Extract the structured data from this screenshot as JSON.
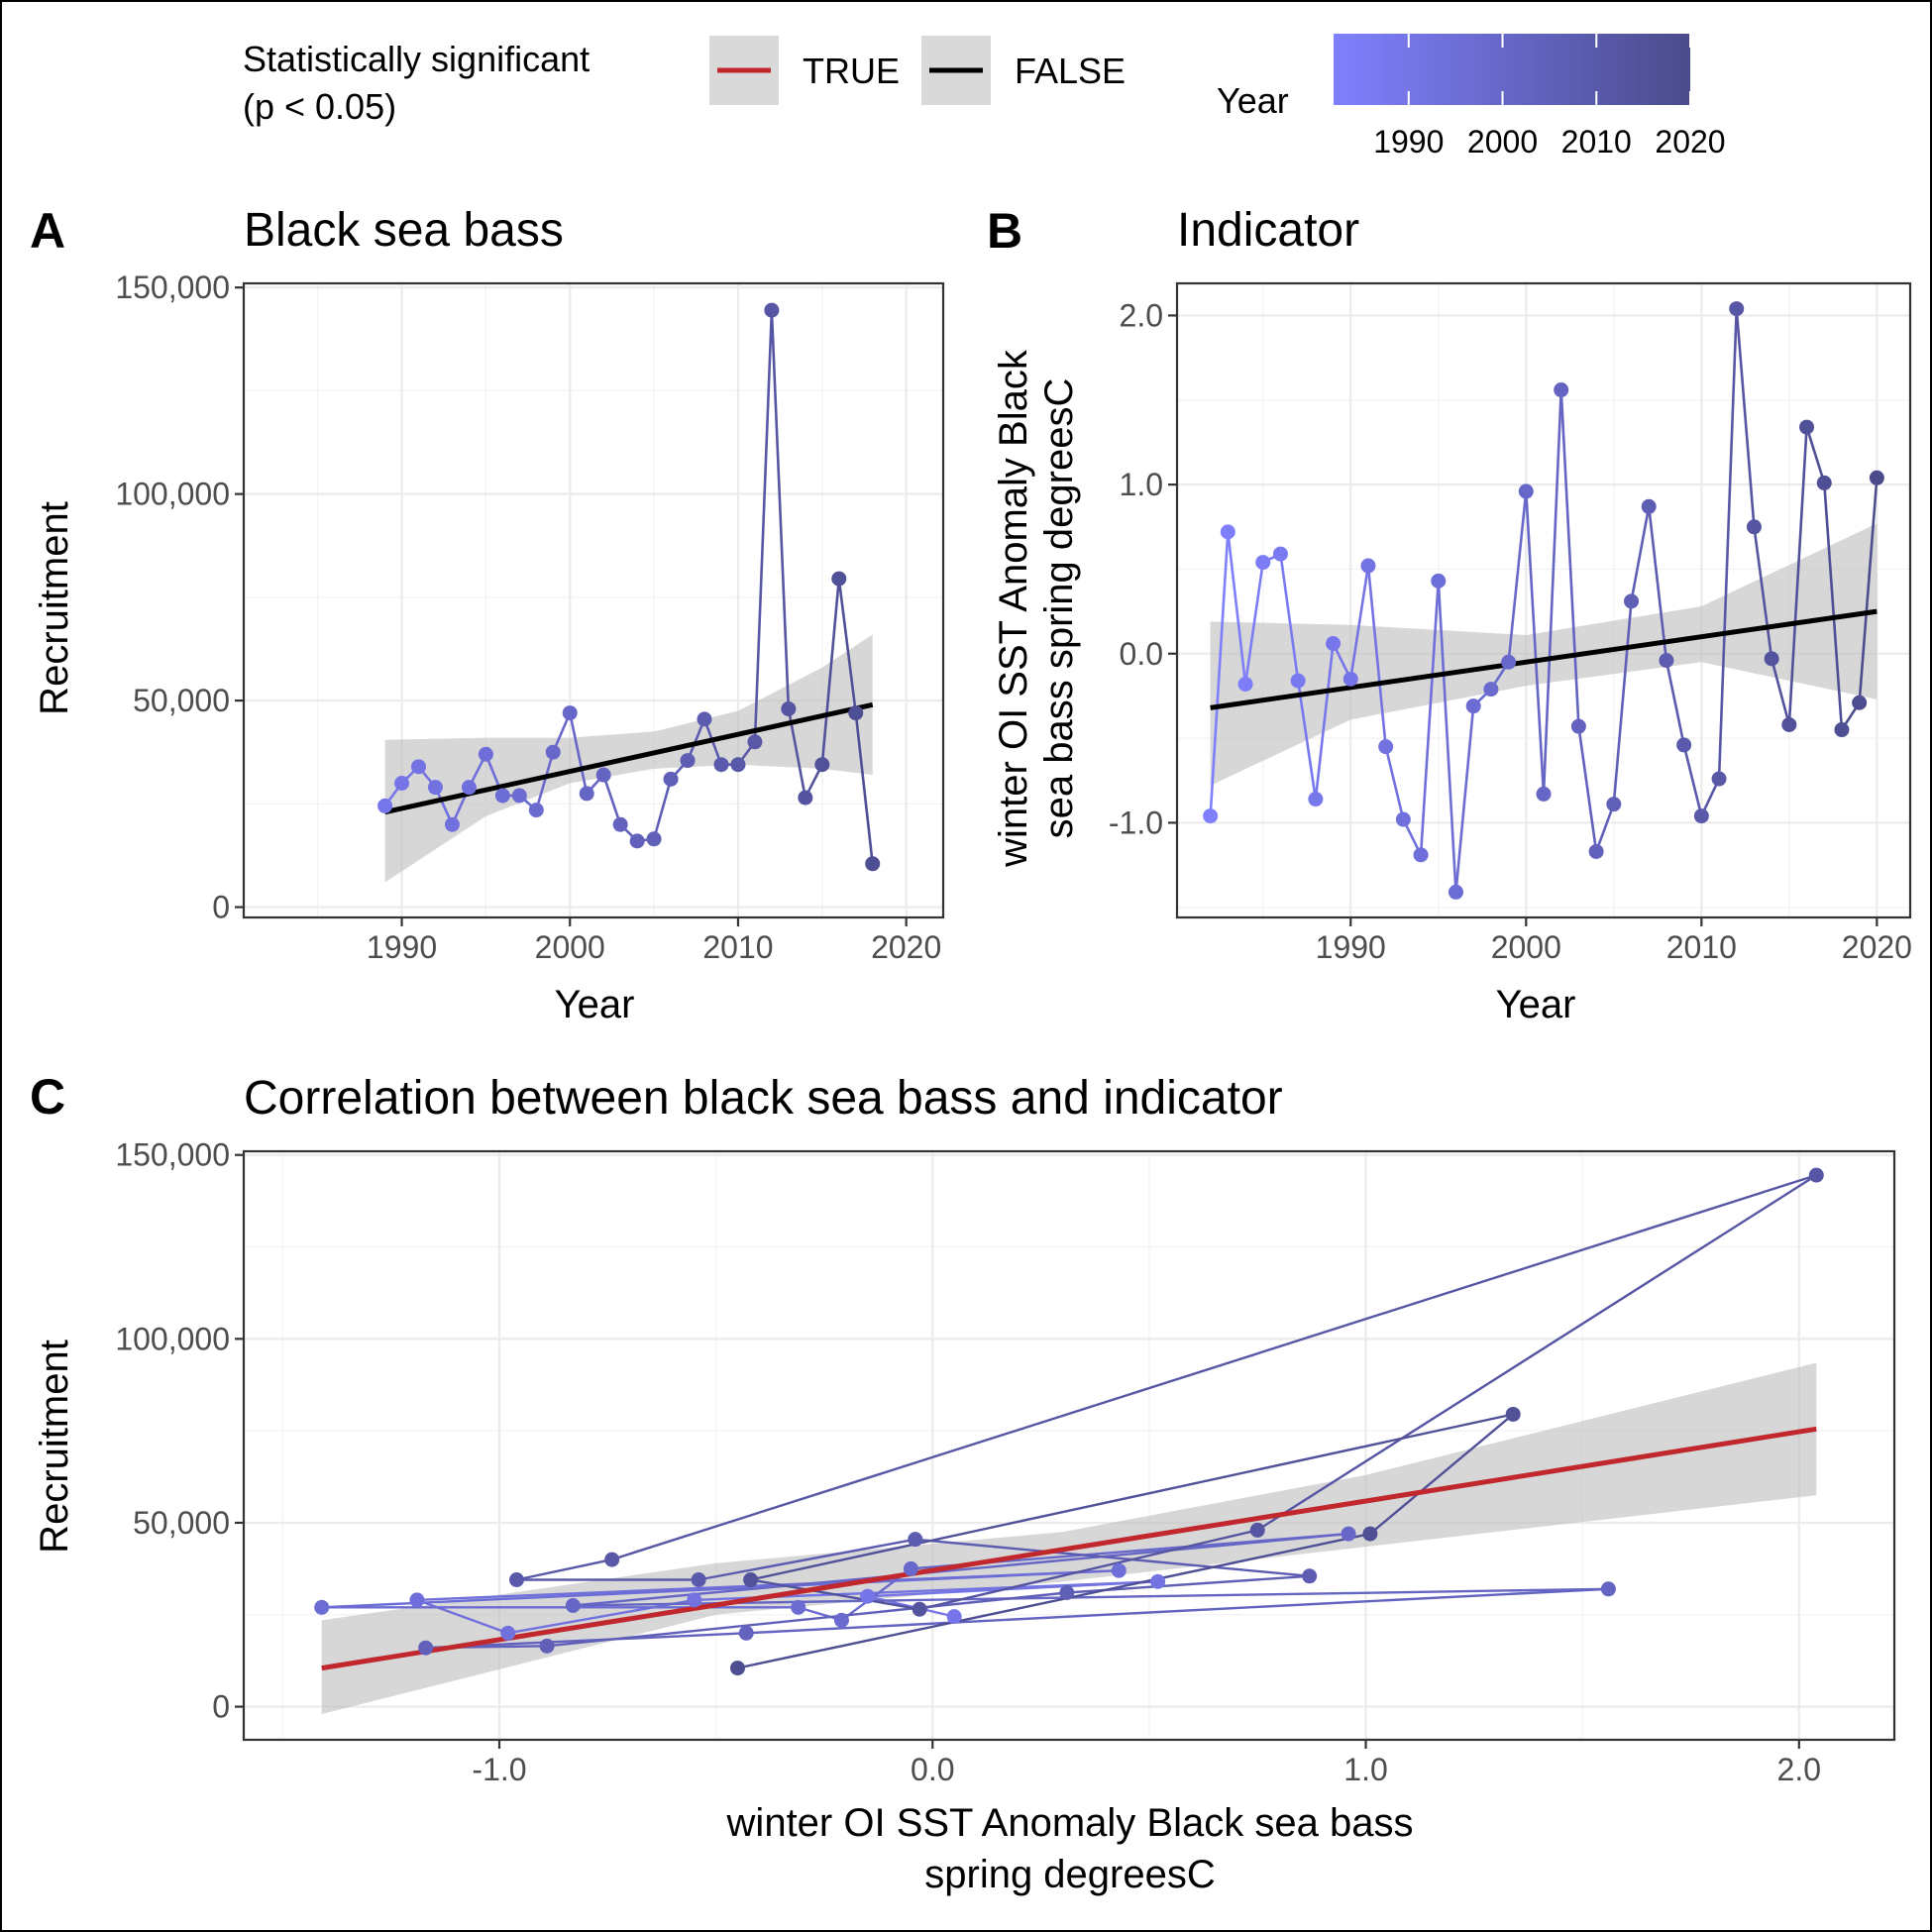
{
  "legend": {
    "sig_title_line1": "Statistically significant",
    "sig_title_line2": "(p < 0.05)",
    "true_label": "TRUE",
    "false_label": "FALSE",
    "year_title": "Year",
    "year_ticks": [
      "1990",
      "2000",
      "2010",
      "2020"
    ],
    "year_range": [
      1982,
      2020
    ],
    "color_low": "#8080ff",
    "color_high": "#4b4b8c",
    "true_color": "#c0282d",
    "false_color": "#000000",
    "ribbon_color": "#bebebe"
  },
  "chart_data": [
    {
      "id": "A",
      "tag": "A",
      "type": "line",
      "title": "Black sea bass",
      "xlabel": "Year",
      "ylabel": "Recruitment",
      "xlim": [
        1980.6,
        2022.2
      ],
      "ylim": [
        -2500,
        151000
      ],
      "xticks": [
        1990,
        2000,
        2010,
        2020
      ],
      "xtick_labels": [
        "1990",
        "2000",
        "2010",
        "2020"
      ],
      "yticks": [
        0,
        50000,
        100000,
        150000
      ],
      "ytick_labels": [
        "0",
        "50,000",
        "100,000",
        "150,000"
      ],
      "grid": true,
      "series": [
        {
          "x": [
            1989,
            1990,
            1991,
            1992,
            1993,
            1994,
            1995,
            1996,
            1997,
            1998,
            1999,
            2000,
            2001,
            2002,
            2003,
            2004,
            2005,
            2006,
            2007,
            2008,
            2009,
            2010,
            2011,
            2012,
            2013,
            2014,
            2015,
            2016,
            2017,
            2018
          ],
          "y": [
            24500,
            30000,
            34000,
            29000,
            20000,
            29000,
            37000,
            27000,
            27000,
            23500,
            37500,
            47000,
            27500,
            32000,
            20000,
            16000,
            16500,
            31000,
            35500,
            45500,
            34500,
            34500,
            40000,
            144500,
            48000,
            26500,
            34500,
            79500,
            47000,
            10500
          ]
        }
      ],
      "trend": {
        "x": [
          1989,
          2018
        ],
        "y": [
          23000,
          49000
        ],
        "significant": false
      },
      "ribbon": {
        "x": [
          1989,
          1995,
          2000,
          2005,
          2010,
          2015,
          2018
        ],
        "lower": [
          6000,
          22000,
          30000,
          33500,
          34500,
          33500,
          32000
        ],
        "upper": [
          40500,
          41000,
          41000,
          42500,
          47500,
          58000,
          66000
        ]
      }
    },
    {
      "id": "B",
      "tag": "B",
      "type": "line",
      "title": "Indicator",
      "xlabel": "Year",
      "ylabel_lines": [
        "winter OI SST Anomaly Black",
        "sea bass spring degreesC"
      ],
      "xlim": [
        1980.1,
        2021.9
      ],
      "ylim": [
        -1.56,
        2.19
      ],
      "xticks": [
        1990,
        2000,
        2010,
        2020
      ],
      "xtick_labels": [
        "1990",
        "2000",
        "2010",
        "2020"
      ],
      "yticks": [
        -1,
        0,
        1,
        2
      ],
      "ytick_labels": [
        "-1.0",
        "0.0",
        "1.0",
        "2.0"
      ],
      "grid": true,
      "series": [
        {
          "x": [
            1982,
            1983,
            1984,
            1985,
            1986,
            1987,
            1988,
            1989,
            1990,
            1991,
            1992,
            1993,
            1994,
            1995,
            1996,
            1997,
            1998,
            1999,
            2000,
            2001,
            2002,
            2003,
            2004,
            2005,
            2006,
            2007,
            2008,
            2009,
            2010,
            2011,
            2012,
            2013,
            2014,
            2015,
            2016,
            2017,
            2018,
            2019,
            2020
          ],
          "y": [
            -0.96,
            0.72,
            -0.18,
            0.54,
            0.59,
            -0.16,
            -0.86,
            0.06,
            -0.15,
            0.52,
            -0.55,
            -0.98,
            -1.19,
            0.43,
            -1.41,
            -0.31,
            -0.21,
            -0.05,
            0.96,
            -0.83,
            1.56,
            -0.43,
            -1.17,
            -0.89,
            0.31,
            0.87,
            -0.04,
            -0.54,
            -0.96,
            -0.74,
            2.04,
            0.75,
            -0.03,
            -0.42,
            1.34,
            1.01,
            -0.45,
            -0.29,
            1.04
          ]
        }
      ],
      "trend": {
        "x": [
          1982,
          2020
        ],
        "y": [
          -0.32,
          0.25
        ],
        "significant": false
      },
      "ribbon": {
        "x": [
          1982,
          1990,
          2000,
          2010,
          2020
        ],
        "lower": [
          -0.78,
          -0.39,
          -0.19,
          -0.05,
          -0.27
        ],
        "upper": [
          0.19,
          0.17,
          0.11,
          0.28,
          0.77
        ]
      }
    },
    {
      "id": "C",
      "tag": "C",
      "type": "scatter",
      "title": "Correlation between black sea bass and indicator",
      "xlabel_lines": [
        "winter OI SST Anomaly Black sea bass",
        "spring degreesC"
      ],
      "ylabel": "Recruitment",
      "xlim": [
        -1.59,
        2.22
      ],
      "ylim": [
        -9000,
        151000
      ],
      "xticks": [
        -1,
        0,
        1,
        2
      ],
      "xtick_labels": [
        "-1.0",
        "0.0",
        "1.0",
        "2.0"
      ],
      "yticks": [
        0,
        50000,
        100000,
        150000
      ],
      "ytick_labels": [
        "0",
        "50,000",
        "100,000",
        "150,000"
      ],
      "grid": true,
      "points": {
        "year": [
          1989,
          1990,
          1991,
          1992,
          1993,
          1994,
          1995,
          1996,
          1997,
          1998,
          1999,
          2000,
          2001,
          2002,
          2003,
          2004,
          2005,
          2006,
          2007,
          2008,
          2009,
          2010,
          2011,
          2012,
          2013,
          2014,
          2015,
          2016,
          2017,
          2018
        ],
        "x": [
          0.05,
          -0.15,
          0.52,
          -0.55,
          -0.98,
          -1.19,
          0.43,
          -1.41,
          -0.31,
          -0.21,
          -0.05,
          0.96,
          -0.83,
          1.56,
          -0.43,
          -1.17,
          -0.89,
          0.31,
          0.87,
          -0.04,
          -0.54,
          -0.96,
          -0.74,
          2.04,
          0.75,
          -0.03,
          -0.42,
          1.34,
          1.01,
          -0.45
        ],
        "y": [
          24500,
          30000,
          34000,
          29000,
          20000,
          29000,
          37000,
          27000,
          27000,
          23500,
          37500,
          47000,
          27500,
          32000,
          20000,
          16000,
          16500,
          31000,
          35500,
          45500,
          34500,
          34500,
          40000,
          144500,
          48000,
          26500,
          34500,
          79500,
          47000,
          10500
        ]
      },
      "trend": {
        "x": [
          -1.41,
          2.04
        ],
        "y": [
          10500,
          75500
        ],
        "significant": true
      },
      "ribbon": {
        "x": [
          -1.41,
          -0.5,
          0.3,
          1.0,
          2.04
        ],
        "lower": [
          -2000,
          25000,
          34000,
          43500,
          57500
        ],
        "upper": [
          23500,
          39000,
          47500,
          63000,
          93500
        ]
      }
    }
  ]
}
